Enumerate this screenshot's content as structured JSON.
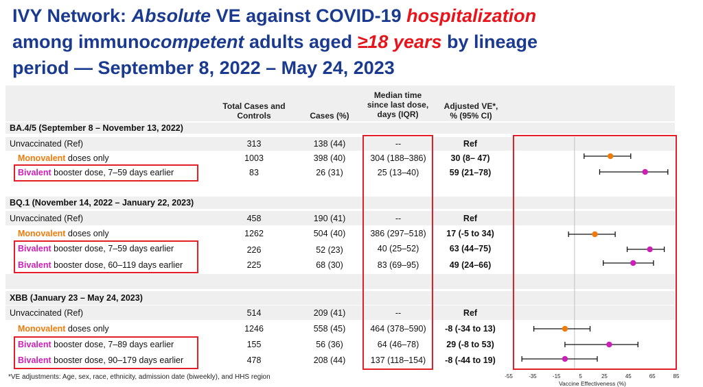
{
  "title": {
    "p1": "IVY Network: ",
    "p2": "Absolute",
    "p3": " VE against COVID-19 ",
    "p4": "hospitalization",
    "p5": "among immuno",
    "p6": "competent",
    "p7": " adults aged ",
    "p8": "≥18 years",
    "p9": " by lineage",
    "p10": "period — September 8, 2022 – May 24, 2023"
  },
  "headers": {
    "total": [
      "Total Cases and",
      "Controls"
    ],
    "cases": [
      "Cases (%)"
    ],
    "median": [
      "Median time",
      "since last dose,",
      "days (IQR)"
    ],
    "ve": [
      "Adjusted VE*,",
      "% (95% CI)"
    ]
  },
  "footnote": "*VE adjustments: Age, sex, race, ethnicity, admission date (biweekly), and HHS region",
  "colors": {
    "orange": "#f07b0b",
    "magenta": "#cc1fb6",
    "red_box": "#e41e26",
    "title_blue": "#1a3a8f"
  },
  "sections": [
    {
      "title": "BA.4/5  (September 8 – November 13, 2022)",
      "rows": [
        {
          "label_color": "",
          "label_bold": "",
          "label_rest": "Unvaccinated  (Ref)",
          "total": "313",
          "cases": "138 (44)",
          "median": "--",
          "ve": "Ref"
        },
        {
          "label_color": "orange",
          "label_bold": "Monovalent",
          "label_rest": " doses only",
          "total": "1003",
          "cases": "398 (40)",
          "median": "304 (188–386)",
          "ve": "30 (8– 47)"
        },
        {
          "label_color": "magenta",
          "label_bold": "Bivalent",
          "label_rest": " booster dose, 7–59  days earlier",
          "total": "83",
          "cases": "26 (31)",
          "median": "25 (13–40)",
          "ve": "59 (21–78)"
        }
      ]
    },
    {
      "title": "BQ.1 (November 14, 2022 – January 22, 2023)",
      "rows": [
        {
          "label_color": "",
          "label_bold": "",
          "label_rest": "Unvaccinated  (Ref)",
          "total": "458",
          "cases": "190 (41)",
          "median": "--",
          "ve": "Ref"
        },
        {
          "label_color": "orange",
          "label_bold": "Monovalent",
          "label_rest": " doses only",
          "total": "1262",
          "cases": "504 (40)",
          "median": "386 (297–518)",
          "ve": "17 (-5 to 34)"
        },
        {
          "label_color": "magenta",
          "label_bold": "Bivalent",
          "label_rest": " booster dose, 7–59 days earlier",
          "total": "226",
          "cases": "52 (23)",
          "median": "40 (25–52)",
          "ve": "63 (44–75)"
        },
        {
          "label_color": "magenta",
          "label_bold": "Bivalent",
          "label_rest": " booster dose, 60–119 days earlier",
          "total": "225",
          "cases": "68 (30)",
          "median": "83 (69–95)",
          "ve": "49 (24–66)"
        }
      ]
    },
    {
      "title": "XBB (January 23 – May 24, 2023)",
      "rows": [
        {
          "label_color": "",
          "label_bold": "",
          "label_rest": "Unvaccinated  (Ref)",
          "total": "514",
          "cases": "209 (41)",
          "median": "--",
          "ve": "Ref"
        },
        {
          "label_color": "orange",
          "label_bold": "Monovalent",
          "label_rest": " doses only",
          "total": "1246",
          "cases": "558 (45)",
          "median": "464 (378–590)",
          "ve": "-8 (-34 to 13)"
        },
        {
          "label_color": "magenta",
          "label_bold": "Bivalent",
          "label_rest": " booster dose, 7–89 days earlier",
          "total": "155",
          "cases": "56 (36)",
          "median": "64 (46–78)",
          "ve": "29 (-8 to 53)"
        },
        {
          "label_color": "magenta",
          "label_bold": "Bivalent",
          "label_rest": " booster dose, 90–179 days earlier",
          "total": "478",
          "cases": "208 (44)",
          "median": "137 (118–154)",
          "ve": "-8 (-44 to 19)"
        }
      ]
    }
  ],
  "chart_data": {
    "type": "scatter",
    "xlabel": "Vaccine Effectiveness (%)",
    "xlim": [
      -55,
      85
    ],
    "x_ticks": [
      -55,
      -35,
      -15,
      5,
      25,
      45,
      65,
      85
    ],
    "x_tick_labels": [
      "-55",
      "-35",
      "-15",
      "5",
      "25",
      "45",
      "65",
      "85"
    ],
    "reference_line": 0,
    "points": [
      {
        "row": "BA.4/5 Monovalent",
        "ve": 30,
        "lo": 8,
        "hi": 47,
        "color": "#f07b0b"
      },
      {
        "row": "BA.4/5 Bivalent 7–59",
        "ve": 59,
        "lo": 21,
        "hi": 78,
        "color": "#cc1fb6"
      },
      {
        "row": "BQ.1 Monovalent",
        "ve": 17,
        "lo": -5,
        "hi": 34,
        "color": "#f07b0b"
      },
      {
        "row": "BQ.1 Bivalent 7–59",
        "ve": 63,
        "lo": 44,
        "hi": 75,
        "color": "#cc1fb6"
      },
      {
        "row": "BQ.1 Bivalent 60–119",
        "ve": 49,
        "lo": 24,
        "hi": 66,
        "color": "#cc1fb6"
      },
      {
        "row": "XBB Monovalent",
        "ve": -8,
        "lo": -34,
        "hi": 13,
        "color": "#f07b0b"
      },
      {
        "row": "XBB Bivalent 7–89",
        "ve": 29,
        "lo": -8,
        "hi": 53,
        "color": "#cc1fb6"
      },
      {
        "row": "XBB Bivalent 90–179",
        "ve": -8,
        "lo": -44,
        "hi": 19,
        "color": "#cc1fb6"
      }
    ]
  }
}
